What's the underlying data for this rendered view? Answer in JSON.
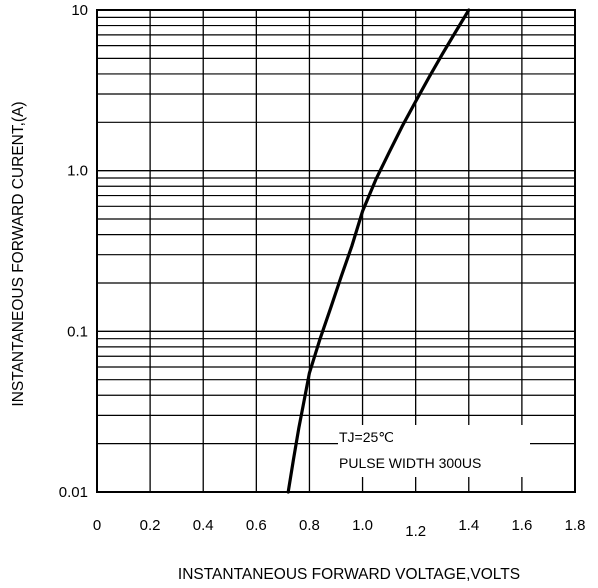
{
  "chart_data": {
    "type": "line",
    "xlabel": "INSTANTANEOUS FORWARD VOLTAGE,VOLTS",
    "ylabel": "INSTANTANEOUS FORWARD CURENT,(A)",
    "xlim": [
      0,
      1.8
    ],
    "ylim": [
      0.01,
      10
    ],
    "y_scale": "log",
    "grid": true,
    "x_ticks": [
      "0",
      "0.2",
      "0.4",
      "0.6",
      "0.8",
      "1.0",
      "1.2",
      "1.4",
      "1.6",
      "1.8"
    ],
    "y_ticks": [
      {
        "label": "0.01",
        "value": 0.01
      },
      {
        "label": "0.1",
        "value": 0.1
      },
      {
        "label": "1.0",
        "value": 1.0
      },
      {
        "label": "10",
        "value": 10
      }
    ],
    "annotations": [
      "TJ=25℃",
      "PULSE WIDTH 300US"
    ],
    "series": [
      {
        "x": [
          0.72,
          0.74,
          0.76,
          0.78,
          0.8,
          0.84,
          0.88,
          0.92,
          0.96,
          1.0,
          1.05,
          1.1,
          1.15,
          1.2,
          1.25,
          1.3,
          1.35,
          1.4
        ],
        "y": [
          0.01,
          0.016,
          0.025,
          0.037,
          0.055,
          0.09,
          0.14,
          0.22,
          0.34,
          0.56,
          0.88,
          1.3,
          1.9,
          2.7,
          3.8,
          5.3,
          7.3,
          10
        ]
      }
    ]
  }
}
